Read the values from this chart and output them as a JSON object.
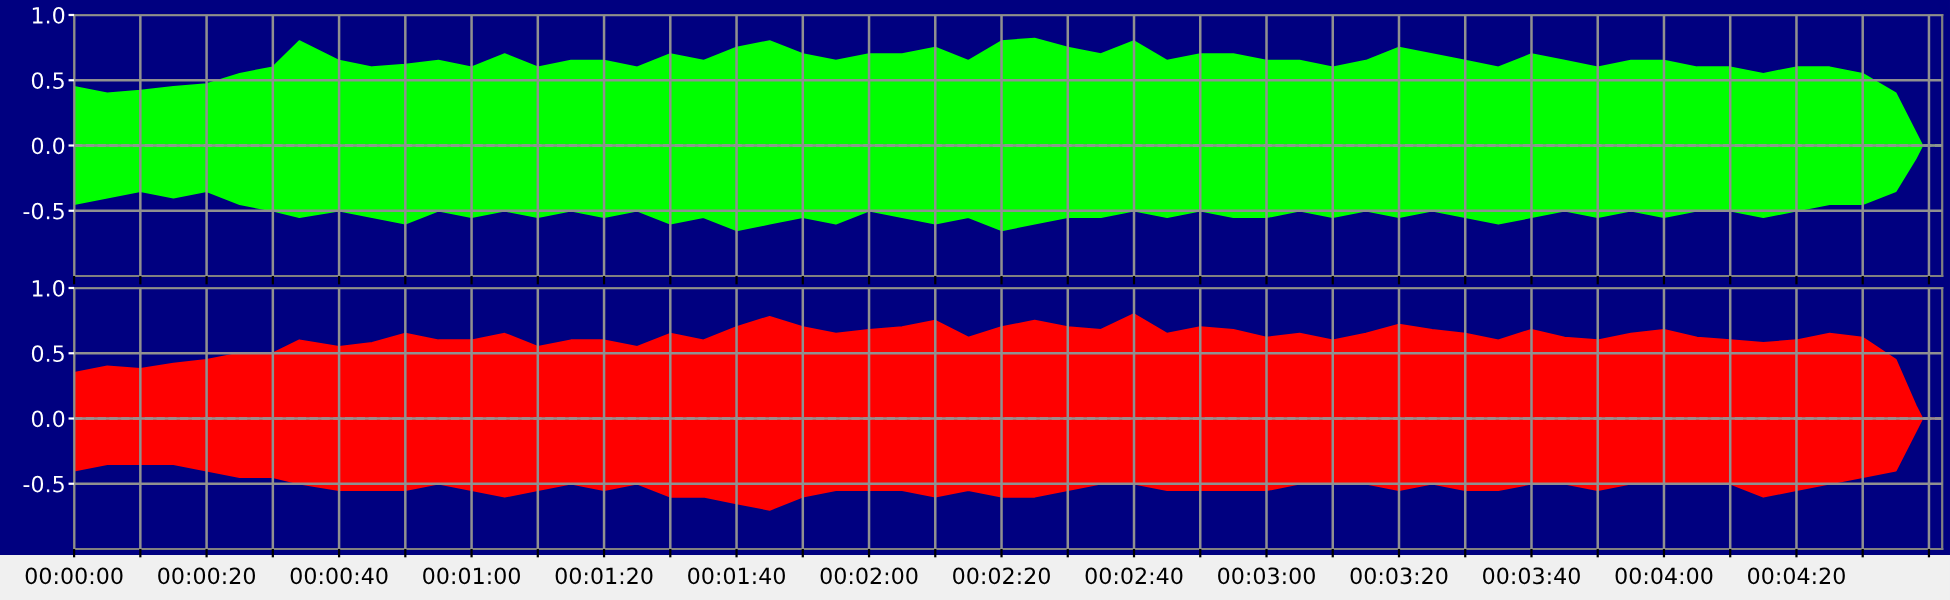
{
  "chart_data": [
    {
      "type": "area",
      "x": [
        0,
        5,
        10,
        15,
        20,
        25,
        30,
        34,
        40,
        45,
        50,
        55,
        60,
        65,
        70,
        75,
        80,
        85,
        90,
        95,
        100,
        105,
        110,
        115,
        120,
        125,
        130,
        135,
        140,
        145,
        150,
        155,
        160,
        165,
        170,
        175,
        180,
        185,
        190,
        195,
        200,
        205,
        210,
        215,
        220,
        225,
        230,
        235,
        240,
        245,
        250,
        255,
        260,
        265,
        270,
        275,
        278,
        279,
        282
      ],
      "series": [
        {
          "color": "#00ff00",
          "values": [
            0.45,
            0.4,
            0.42,
            0.45,
            0.47,
            0.55,
            0.6,
            0.8,
            0.65,
            0.6,
            0.62,
            0.65,
            0.6,
            0.7,
            0.6,
            0.65,
            0.65,
            0.6,
            0.7,
            0.65,
            0.75,
            0.8,
            0.7,
            0.65,
            0.7,
            0.7,
            0.75,
            0.65,
            0.8,
            0.82,
            0.75,
            0.7,
            0.8,
            0.65,
            0.7,
            0.7,
            0.65,
            0.65,
            0.6,
            0.65,
            0.75,
            0.7,
            0.65,
            0.6,
            0.7,
            0.65,
            0.6,
            0.65,
            0.65,
            0.6,
            0.6,
            0.55,
            0.6,
            0.6,
            0.55,
            0.4,
            0.1,
            0,
            0
          ]
        },
        {
          "color": "#00ff00",
          "values": [
            -0.45,
            -0.4,
            -0.35,
            -0.4,
            -0.35,
            -0.45,
            -0.5,
            -0.55,
            -0.5,
            -0.55,
            -0.6,
            -0.5,
            -0.55,
            -0.5,
            -0.55,
            -0.5,
            -0.55,
            -0.5,
            -0.6,
            -0.55,
            -0.65,
            -0.6,
            -0.55,
            -0.6,
            -0.5,
            -0.55,
            -0.6,
            -0.55,
            -0.65,
            -0.6,
            -0.55,
            -0.55,
            -0.5,
            -0.55,
            -0.5,
            -0.55,
            -0.55,
            -0.5,
            -0.55,
            -0.5,
            -0.55,
            -0.5,
            -0.55,
            -0.6,
            -0.55,
            -0.5,
            -0.55,
            -0.5,
            -0.55,
            -0.5,
            -0.5,
            -0.55,
            -0.5,
            -0.45,
            -0.45,
            -0.35,
            -0.1,
            0,
            0
          ]
        }
      ],
      "xlim": [
        0,
        282
      ],
      "ylim": [
        -1.0,
        1.0
      ],
      "xticks": [
        0,
        10,
        20,
        30,
        40,
        50,
        60,
        70,
        80,
        90,
        100,
        110,
        120,
        130,
        140,
        150,
        160,
        170,
        180,
        190,
        200,
        210,
        220,
        230,
        240,
        250,
        260,
        270,
        280
      ],
      "yticks": [
        {
          "value": 1.0,
          "label": "1.0"
        },
        {
          "value": 0.5,
          "label": "0.5"
        },
        {
          "value": 0.0,
          "label": "0.0"
        },
        {
          "value": -0.5,
          "label": "-0.5"
        }
      ],
      "tick_labels": "y",
      "grid": true,
      "ref_lines": [
        {
          "axis": "y",
          "value": 0,
          "color": "#d0d0d0",
          "line_style": "dashed"
        }
      ]
    },
    {
      "type": "area",
      "x": [
        0,
        5,
        10,
        15,
        20,
        25,
        30,
        34,
        40,
        45,
        50,
        55,
        60,
        65,
        70,
        75,
        80,
        85,
        90,
        95,
        100,
        105,
        110,
        115,
        120,
        125,
        130,
        135,
        140,
        145,
        150,
        155,
        160,
        165,
        170,
        175,
        180,
        185,
        190,
        195,
        200,
        205,
        210,
        215,
        220,
        225,
        230,
        235,
        240,
        245,
        250,
        255,
        260,
        265,
        270,
        275,
        278,
        279,
        282
      ],
      "series": [
        {
          "color": "#ff0000",
          "values": [
            0.35,
            0.4,
            0.38,
            0.42,
            0.45,
            0.5,
            0.5,
            0.6,
            0.55,
            0.58,
            0.65,
            0.6,
            0.6,
            0.65,
            0.55,
            0.6,
            0.6,
            0.55,
            0.65,
            0.6,
            0.7,
            0.78,
            0.7,
            0.65,
            0.68,
            0.7,
            0.75,
            0.62,
            0.7,
            0.75,
            0.7,
            0.68,
            0.8,
            0.65,
            0.7,
            0.68,
            0.62,
            0.65,
            0.6,
            0.65,
            0.72,
            0.68,
            0.65,
            0.6,
            0.68,
            0.62,
            0.6,
            0.65,
            0.68,
            0.62,
            0.6,
            0.58,
            0.6,
            0.65,
            0.62,
            0.45,
            0.1,
            0,
            0
          ]
        },
        {
          "color": "#ff0000",
          "values": [
            -0.4,
            -0.35,
            -0.35,
            -0.35,
            -0.4,
            -0.45,
            -0.45,
            -0.5,
            -0.55,
            -0.55,
            -0.55,
            -0.5,
            -0.55,
            -0.6,
            -0.55,
            -0.5,
            -0.55,
            -0.5,
            -0.6,
            -0.6,
            -0.65,
            -0.7,
            -0.6,
            -0.55,
            -0.55,
            -0.55,
            -0.6,
            -0.55,
            -0.6,
            -0.6,
            -0.55,
            -0.5,
            -0.5,
            -0.55,
            -0.55,
            -0.55,
            -0.55,
            -0.5,
            -0.5,
            -0.5,
            -0.55,
            -0.5,
            -0.55,
            -0.55,
            -0.5,
            -0.5,
            -0.55,
            -0.5,
            -0.5,
            -0.5,
            -0.5,
            -0.6,
            -0.55,
            -0.5,
            -0.45,
            -0.4,
            -0.1,
            0,
            0
          ]
        }
      ],
      "xlim": [
        0,
        282
      ],
      "ylim": [
        -1.0,
        1.0
      ],
      "xticks": [
        {
          "value": 0,
          "label": "00:00:00"
        },
        {
          "value": 10,
          "label": null
        },
        {
          "value": 20,
          "label": "00:00:20"
        },
        {
          "value": 30,
          "label": null
        },
        {
          "value": 40,
          "label": "00:00:40"
        },
        {
          "value": 50,
          "label": null
        },
        {
          "value": 60,
          "label": "00:01:00"
        },
        {
          "value": 70,
          "label": null
        },
        {
          "value": 80,
          "label": "00:01:20"
        },
        {
          "value": 90,
          "label": null
        },
        {
          "value": 100,
          "label": "00:01:40"
        },
        {
          "value": 110,
          "label": null
        },
        {
          "value": 120,
          "label": "00:02:00"
        },
        {
          "value": 130,
          "label": null
        },
        {
          "value": 140,
          "label": "00:02:20"
        },
        {
          "value": 150,
          "label": null
        },
        {
          "value": 160,
          "label": "00:02:40"
        },
        {
          "value": 170,
          "label": null
        },
        {
          "value": 180,
          "label": "00:03:00"
        },
        {
          "value": 190,
          "label": null
        },
        {
          "value": 200,
          "label": "00:03:20"
        },
        {
          "value": 210,
          "label": null
        },
        {
          "value": 220,
          "label": "00:03:40"
        },
        {
          "value": 230,
          "label": null
        },
        {
          "value": 240,
          "label": "00:04:00"
        },
        {
          "value": 250,
          "label": null
        },
        {
          "value": 260,
          "label": "00:04:20"
        },
        {
          "value": 270,
          "label": null
        },
        {
          "value": 280,
          "label": null
        }
      ],
      "yticks": [
        {
          "value": 1.0,
          "label": "1.0"
        },
        {
          "value": 0.5,
          "label": "0.5"
        },
        {
          "value": 0.0,
          "label": "0.0"
        },
        {
          "value": -0.5,
          "label": "-0.5"
        }
      ],
      "grid": true,
      "ref_lines": [
        {
          "axis": "y",
          "value": 0,
          "color": "#d0d0d0",
          "line_style": "dashed"
        }
      ]
    }
  ]
}
